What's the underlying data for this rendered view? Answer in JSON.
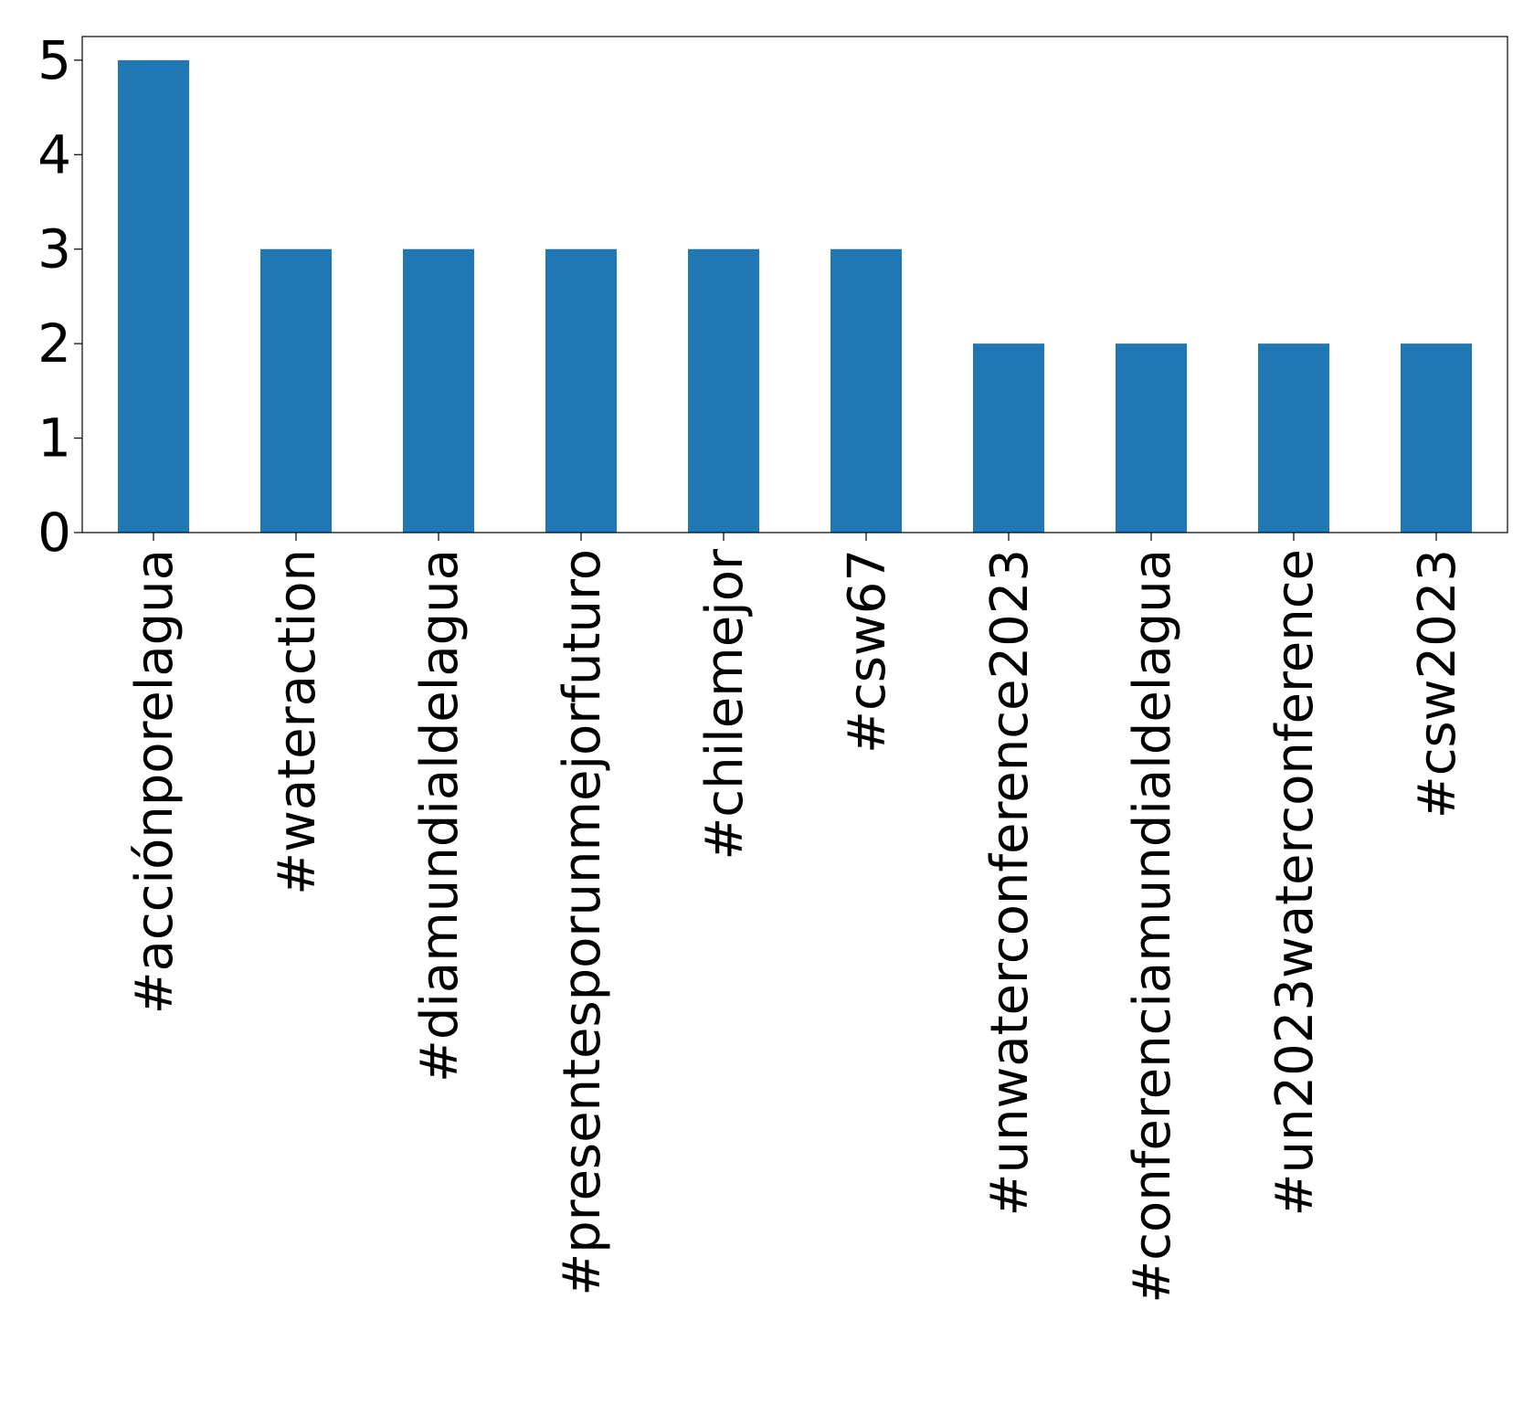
{
  "chart_data": {
    "type": "bar",
    "title": "",
    "xlabel": "",
    "ylabel": "",
    "categories": [
      "#acciónporelagua",
      "#wateraction",
      "#diamundialdelagua",
      "#presentesporunmejorfuturo",
      "#chilemejor",
      "#csw67",
      "#unwaterconference2023",
      "#conferenciamundialdelagua",
      "#un2023waterconference",
      "#csw2023"
    ],
    "values": [
      5,
      3,
      3,
      3,
      3,
      3,
      2,
      2,
      2,
      2
    ],
    "ylim": [
      0,
      5.25
    ],
    "yticks": [
      0,
      1,
      2,
      3,
      4,
      5
    ],
    "bar_color": "#1f77b4",
    "grid": false,
    "legend": "none"
  }
}
